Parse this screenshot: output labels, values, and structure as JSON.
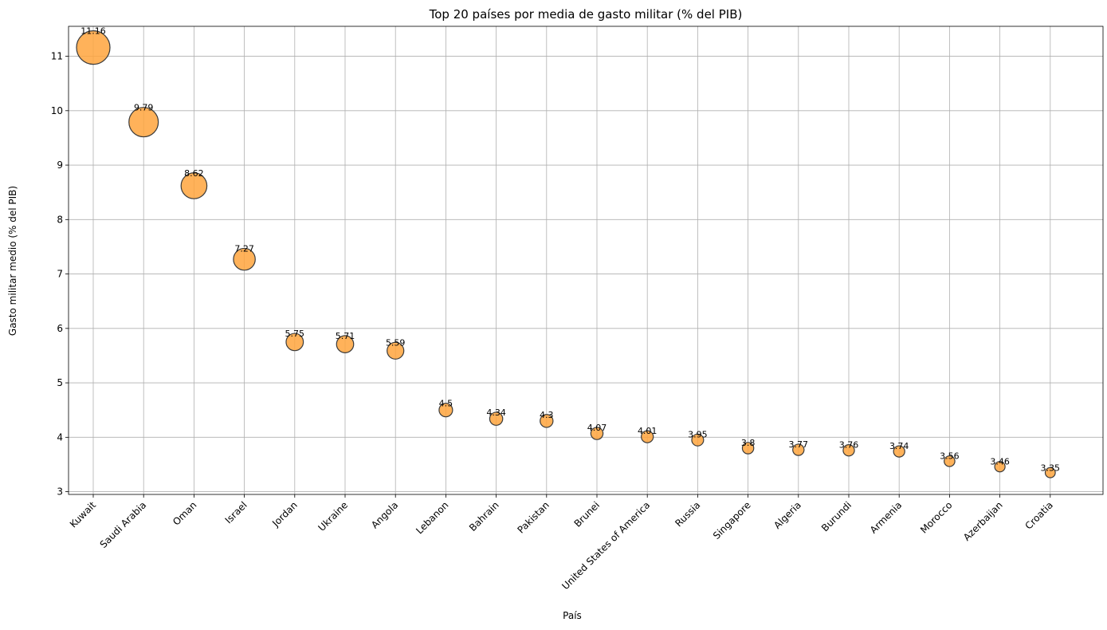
{
  "chart_data": {
    "type": "scatter",
    "title": "Top 20 países por media de gasto militar (% del PIB)",
    "xlabel": "País",
    "ylabel": "Gasto militar medio (% del PIB)",
    "ylim": [
      2.95,
      11.55
    ],
    "yticks": [
      3,
      4,
      5,
      6,
      7,
      8,
      9,
      10,
      11
    ],
    "grid": true,
    "marker_color": "#ffa53d",
    "marker_edge_color": "#3a3a3a",
    "categories": [
      "Kuwait",
      "Saudi Arabia",
      "Oman",
      "Israel",
      "Jordan",
      "Ukraine",
      "Angola",
      "Lebanon",
      "Bahrain",
      "Pakistan",
      "Brunei",
      "United States of America",
      "Russia",
      "Singapore",
      "Algeria",
      "Burundi",
      "Armenia",
      "Morocco",
      "Azerbaijan",
      "Croatia"
    ],
    "values": [
      11.16,
      9.79,
      8.62,
      7.27,
      5.75,
      5.71,
      5.59,
      4.5,
      4.34,
      4.3,
      4.07,
      4.01,
      3.95,
      3.8,
      3.77,
      3.76,
      3.74,
      3.56,
      3.46,
      3.35
    ],
    "labels": [
      "11.16",
      "9.79",
      "8.62",
      "7.27",
      "5.75",
      "5.71",
      "5.59",
      "4.5",
      "4.34",
      "4.3",
      "4.07",
      "4.01",
      "3.95",
      "3.8",
      "3.77",
      "3.76",
      "3.74",
      "3.56",
      "3.46",
      "3.35"
    ]
  }
}
